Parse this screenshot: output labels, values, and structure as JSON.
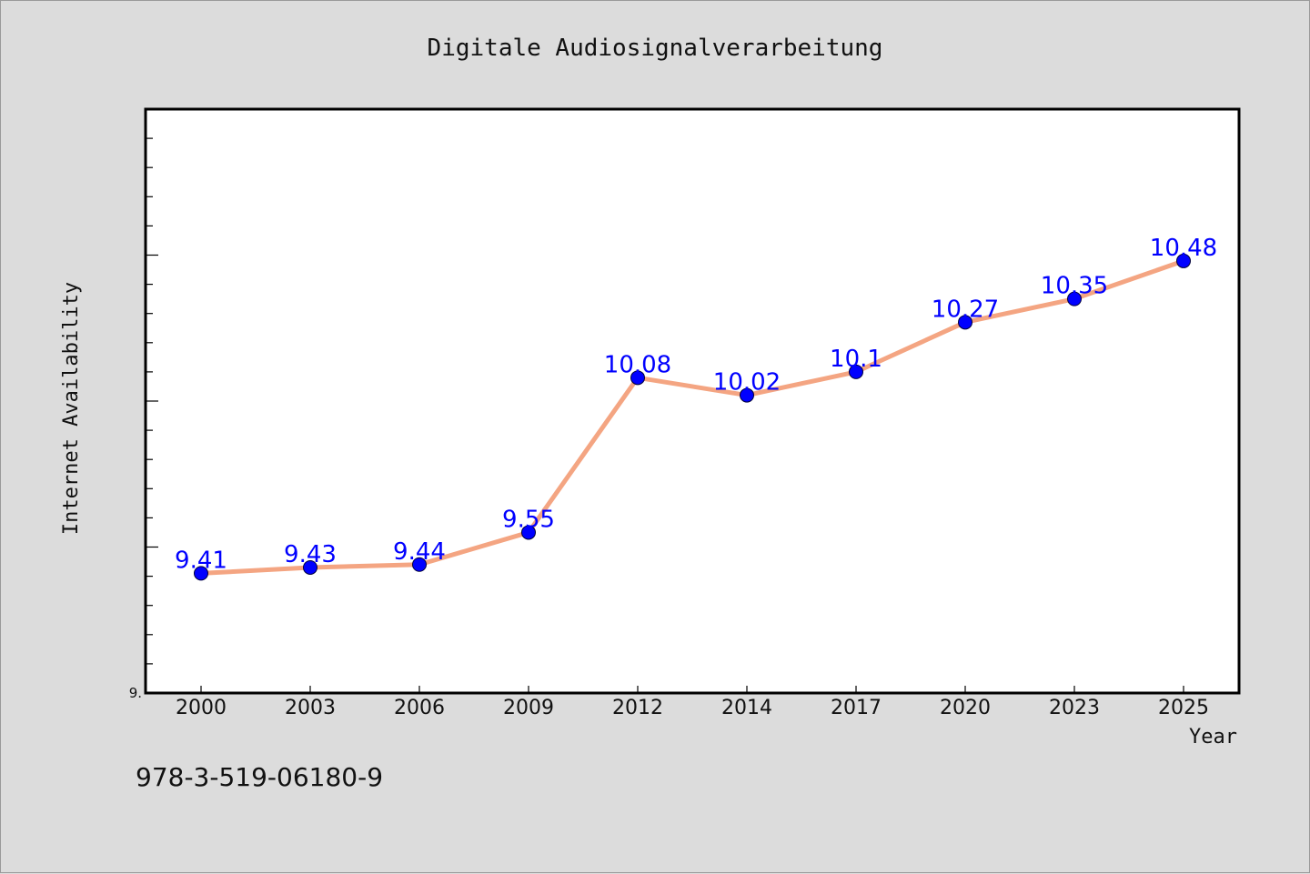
{
  "chart_data": {
    "type": "line",
    "title": "Digitale Audiosignalverarbeitung",
    "xlabel": "Year",
    "ylabel": "Internet Availability",
    "categories": [
      "2000",
      "2003",
      "2006",
      "2009",
      "2012",
      "2014",
      "2017",
      "2020",
      "2023",
      "2025"
    ],
    "series": [
      {
        "values": [
          9.41,
          9.43,
          9.44,
          9.55,
          10.08,
          10.02,
          10.1,
          10.27,
          10.35,
          10.48
        ]
      }
    ],
    "data_labels": [
      "9.41",
      "9.43",
      "9.44",
      "9.55",
      "10.08",
      "10.02",
      "10.1",
      "10.27",
      "10.35",
      "10.48"
    ],
    "y_tick_labels": [
      "9."
    ],
    "ylim": [
      9.0,
      11.0
    ],
    "grid": false,
    "legend": "none",
    "colors": {
      "line": "#f4a582",
      "marker": "#0000ff",
      "data_label": "#0000ff",
      "plot_background": "#ffffff",
      "page_background": "#dcdcdc"
    }
  },
  "footer": {
    "isbn": "978-3-519-06180-9"
  }
}
